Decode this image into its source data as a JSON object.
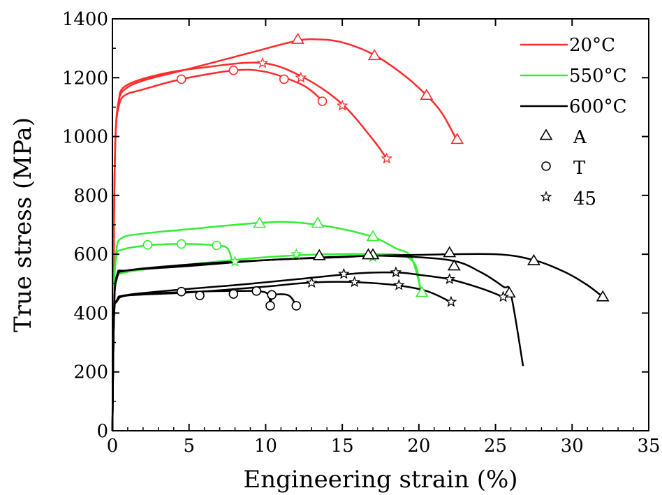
{
  "chart_data": {
    "type": "line",
    "xlabel": "Engineering strain (%)",
    "ylabel": "True stress (MPa)",
    "xlim": [
      0,
      35
    ],
    "ylim": [
      0,
      1400
    ],
    "xticks": [
      0,
      5,
      10,
      15,
      20,
      25,
      30,
      35
    ],
    "yticks": [
      0,
      200,
      400,
      600,
      800,
      1000,
      1200,
      1400
    ],
    "grid": false,
    "legend_position": "top-right",
    "legend": [
      {
        "label": "20°C",
        "kind": "line",
        "color": "#ff2a2a"
      },
      {
        "label": "550°C",
        "kind": "line",
        "color": "#33ee33"
      },
      {
        "label": "600°C",
        "kind": "line",
        "color": "#000000"
      },
      {
        "label": "A",
        "kind": "marker",
        "marker": "triangle"
      },
      {
        "label": "T",
        "kind": "marker",
        "marker": "circle"
      },
      {
        "label": "45",
        "kind": "marker",
        "marker": "star"
      }
    ],
    "series": [
      {
        "temperature": "20°C",
        "orientation": "A",
        "color": "#ff2a2a",
        "marker": "triangle",
        "points": [
          [
            0,
            0
          ],
          [
            0.1,
            700
          ],
          [
            0.2,
            1000
          ],
          [
            0.4,
            1120
          ],
          [
            0.8,
            1160
          ],
          [
            2,
            1190
          ],
          [
            5,
            1230
          ],
          [
            9,
            1285
          ],
          [
            12,
            1325
          ],
          [
            13.5,
            1330
          ],
          [
            15,
            1320
          ],
          [
            17,
            1280
          ],
          [
            19,
            1210
          ],
          [
            20.5,
            1140
          ],
          [
            21.5,
            1080
          ],
          [
            22.5,
            985
          ]
        ],
        "markers": [
          [
            12.1,
            1330
          ],
          [
            17.1,
            1275
          ],
          [
            20.5,
            1140
          ],
          [
            22.5,
            990
          ]
        ]
      },
      {
        "temperature": "20°C",
        "orientation": "T",
        "color": "#ff2a2a",
        "marker": "circle",
        "points": [
          [
            0,
            0
          ],
          [
            0.1,
            700
          ],
          [
            0.2,
            1000
          ],
          [
            0.4,
            1100
          ],
          [
            0.8,
            1140
          ],
          [
            2,
            1160
          ],
          [
            4.5,
            1195
          ],
          [
            8,
            1225
          ],
          [
            10,
            1220
          ],
          [
            12,
            1185
          ],
          [
            13,
            1155
          ],
          [
            13.8,
            1115
          ]
        ],
        "markers": [
          [
            4.5,
            1195
          ],
          [
            7.9,
            1225
          ],
          [
            11.2,
            1195
          ],
          [
            13.7,
            1120
          ]
        ]
      },
      {
        "temperature": "20°C",
        "orientation": "45",
        "color": "#ff2a2a",
        "marker": "star",
        "points": [
          [
            0,
            0
          ],
          [
            0.1,
            700
          ],
          [
            0.2,
            1000
          ],
          [
            0.4,
            1110
          ],
          [
            0.8,
            1170
          ],
          [
            3,
            1210
          ],
          [
            6,
            1235
          ],
          [
            9.8,
            1250
          ],
          [
            12.5,
            1200
          ],
          [
            15,
            1110
          ],
          [
            17,
            990
          ],
          [
            17.9,
            925
          ]
        ],
        "markers": [
          [
            9.8,
            1250
          ],
          [
            12.3,
            1200
          ],
          [
            15,
            1105
          ],
          [
            17.9,
            925
          ]
        ]
      },
      {
        "temperature": "550°C",
        "orientation": "A",
        "color": "#33ee33",
        "marker": "triangle",
        "points": [
          [
            0,
            0
          ],
          [
            0.1,
            450
          ],
          [
            0.25,
            610
          ],
          [
            0.6,
            655
          ],
          [
            2,
            670
          ],
          [
            5,
            685
          ],
          [
            8,
            700
          ],
          [
            11,
            710
          ],
          [
            13.4,
            700
          ],
          [
            15.5,
            680
          ],
          [
            17.2,
            655
          ],
          [
            18.5,
            620
          ],
          [
            19.5,
            590
          ],
          [
            20.2,
            465
          ]
        ],
        "markers": [
          [
            9.6,
            705
          ],
          [
            13.4,
            705
          ],
          [
            17,
            660
          ],
          [
            20.2,
            470
          ]
        ]
      },
      {
        "temperature": "550°C",
        "orientation": "T",
        "color": "#33ee33",
        "marker": "circle",
        "points": [
          [
            0,
            0
          ],
          [
            0.1,
            450
          ],
          [
            0.25,
            590
          ],
          [
            0.6,
            615
          ],
          [
            2.3,
            630
          ],
          [
            4.5,
            635
          ],
          [
            6.8,
            630
          ],
          [
            7.5,
            620
          ],
          [
            7.8,
            580
          ]
        ],
        "markers": [
          [
            2.3,
            632
          ],
          [
            4.5,
            635
          ],
          [
            6.8,
            630
          ]
        ]
      },
      {
        "temperature": "550°C",
        "orientation": "45",
        "color": "#33ee33",
        "marker": "star",
        "points": [
          [
            0,
            0
          ],
          [
            0.1,
            400
          ],
          [
            0.25,
            510
          ],
          [
            1,
            540
          ],
          [
            5,
            565
          ],
          [
            10,
            590
          ],
          [
            14,
            600
          ],
          [
            17.5,
            600
          ],
          [
            19,
            595
          ],
          [
            19.8,
            560
          ],
          [
            20.1,
            470
          ]
        ],
        "markers": [
          [
            8,
            575
          ],
          [
            12,
            600
          ],
          [
            17,
            590
          ]
        ]
      },
      {
        "temperature": "600°C",
        "orientation": "A",
        "color": "#000000",
        "marker": "triangle",
        "points": [
          [
            0,
            0
          ],
          [
            0.1,
            400
          ],
          [
            0.3,
            520
          ],
          [
            1,
            545
          ],
          [
            5,
            565
          ],
          [
            10,
            580
          ],
          [
            15,
            592
          ],
          [
            20,
            598
          ],
          [
            25,
            600
          ],
          [
            27.5,
            580
          ],
          [
            29.5,
            540
          ],
          [
            31,
            495
          ],
          [
            32,
            455
          ]
        ],
        "markers": [
          [
            13.5,
            595
          ],
          [
            17,
            598
          ],
          [
            22,
            605
          ],
          [
            27.5,
            578
          ],
          [
            32,
            455
          ]
        ]
      },
      {
        "temperature": "600°C",
        "orientation": "A",
        "color": "#000000",
        "marker": "triangle",
        "points": [
          [
            0,
            0
          ],
          [
            0.1,
            400
          ],
          [
            0.3,
            530
          ],
          [
            1,
            545
          ],
          [
            5,
            560
          ],
          [
            10,
            580
          ],
          [
            15,
            590
          ],
          [
            17.5,
            595
          ],
          [
            22,
            580
          ],
          [
            24,
            540
          ],
          [
            25.5,
            490
          ],
          [
            26,
            465
          ],
          [
            26.8,
            220
          ]
        ],
        "markers": [
          [
            16.7,
            598
          ],
          [
            22.3,
            560
          ],
          [
            25.9,
            468
          ]
        ]
      },
      {
        "temperature": "600°C",
        "orientation": "T",
        "color": "#000000",
        "marker": "circle",
        "points": [
          [
            0,
            0
          ],
          [
            0.1,
            380
          ],
          [
            0.3,
            440
          ],
          [
            1,
            460
          ],
          [
            4,
            470
          ],
          [
            8,
            475
          ],
          [
            10,
            470
          ],
          [
            10.3,
            430
          ],
          [
            10.5,
            460
          ],
          [
            11.5,
            460
          ],
          [
            12,
            425
          ]
        ],
        "markers": [
          [
            4.5,
            473
          ],
          [
            5.7,
            460
          ],
          [
            7.9,
            465
          ],
          [
            9.4,
            475
          ],
          [
            10.3,
            425
          ],
          [
            10.4,
            462
          ],
          [
            12,
            425
          ]
        ]
      },
      {
        "temperature": "600°C",
        "orientation": "45",
        "color": "#000000",
        "marker": "star",
        "points": [
          [
            0,
            0
          ],
          [
            0.1,
            380
          ],
          [
            0.3,
            445
          ],
          [
            1,
            462
          ],
          [
            4,
            478
          ],
          [
            8,
            495
          ],
          [
            12,
            515
          ],
          [
            16,
            535
          ],
          [
            18.5,
            538
          ],
          [
            20,
            530
          ],
          [
            22,
            515
          ],
          [
            24,
            485
          ],
          [
            25.5,
            455
          ]
        ],
        "markers": [
          [
            15.1,
            533
          ],
          [
            18.5,
            538
          ],
          [
            22,
            515
          ],
          [
            25.5,
            455
          ]
        ]
      },
      {
        "temperature": "600°C",
        "orientation": "45",
        "color": "#000000",
        "marker": "star",
        "points": [
          [
            0,
            0
          ],
          [
            0.1,
            380
          ],
          [
            0.3,
            445
          ],
          [
            1,
            460
          ],
          [
            5,
            470
          ],
          [
            10,
            490
          ],
          [
            12,
            500
          ],
          [
            14,
            506
          ],
          [
            16,
            505
          ],
          [
            18.5,
            495
          ],
          [
            20.5,
            475
          ],
          [
            22,
            440
          ]
        ],
        "markers": [
          [
            13,
            503
          ],
          [
            15.8,
            505
          ],
          [
            18.7,
            495
          ],
          [
            22.1,
            438
          ]
        ]
      }
    ]
  }
}
